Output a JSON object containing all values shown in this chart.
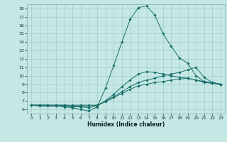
{
  "title": "",
  "xlabel": "Humidex (Indice chaleur)",
  "xlim": [
    -0.5,
    23.5
  ],
  "ylim": [
    5.5,
    18.5
  ],
  "xticks": [
    0,
    1,
    2,
    3,
    4,
    5,
    6,
    7,
    8,
    9,
    10,
    11,
    12,
    13,
    14,
    15,
    16,
    17,
    18,
    19,
    20,
    21,
    22,
    23
  ],
  "yticks": [
    6,
    7,
    8,
    9,
    10,
    11,
    12,
    13,
    14,
    15,
    16,
    17,
    18
  ],
  "background_color": "#c5e8e4",
  "line_color": "#1a6e6a",
  "grid_color": "#9ecece",
  "lines": [
    {
      "x": [
        0,
        1,
        2,
        3,
        4,
        5,
        6,
        7,
        8,
        9,
        10,
        11,
        12,
        13,
        14,
        15,
        16,
        17,
        18,
        19,
        20,
        21,
        22,
        23
      ],
      "y": [
        6.5,
        6.4,
        6.4,
        6.4,
        6.3,
        6.2,
        6.0,
        5.8,
        6.3,
        8.5,
        11.2,
        14.0,
        16.7,
        18.1,
        18.3,
        17.2,
        15.0,
        13.5,
        12.1,
        11.5,
        10.0,
        9.3,
        9.1,
        9.0
      ]
    },
    {
      "x": [
        0,
        1,
        2,
        3,
        4,
        5,
        6,
        7,
        8,
        9,
        10,
        11,
        12,
        13,
        14,
        15,
        16,
        17,
        18,
        19,
        20,
        21,
        22,
        23
      ],
      "y": [
        6.5,
        6.5,
        6.5,
        6.4,
        6.4,
        6.3,
        6.3,
        6.2,
        6.4,
        7.0,
        7.8,
        8.7,
        9.5,
        10.2,
        10.5,
        10.4,
        10.2,
        10.0,
        9.8,
        9.7,
        9.5,
        9.3,
        9.2,
        9.0
      ]
    },
    {
      "x": [
        0,
        1,
        2,
        3,
        4,
        5,
        6,
        7,
        8,
        9,
        10,
        11,
        12,
        13,
        14,
        15,
        16,
        17,
        18,
        19,
        20,
        21,
        22,
        23
      ],
      "y": [
        6.5,
        6.5,
        6.5,
        6.5,
        6.5,
        6.4,
        6.4,
        6.4,
        6.5,
        6.9,
        7.4,
        7.9,
        8.4,
        8.8,
        9.0,
        9.2,
        9.3,
        9.5,
        9.6,
        9.7,
        9.5,
        9.2,
        9.1,
        9.0
      ]
    },
    {
      "x": [
        0,
        1,
        2,
        3,
        4,
        5,
        6,
        7,
        8,
        9,
        10,
        11,
        12,
        13,
        14,
        15,
        16,
        17,
        18,
        19,
        20,
        21,
        22,
        23
      ],
      "y": [
        6.5,
        6.5,
        6.5,
        6.5,
        6.5,
        6.5,
        6.5,
        6.5,
        6.5,
        7.0,
        7.5,
        8.1,
        8.7,
        9.2,
        9.5,
        9.7,
        10.0,
        10.2,
        10.4,
        10.7,
        11.0,
        9.8,
        9.2,
        9.0
      ]
    }
  ]
}
